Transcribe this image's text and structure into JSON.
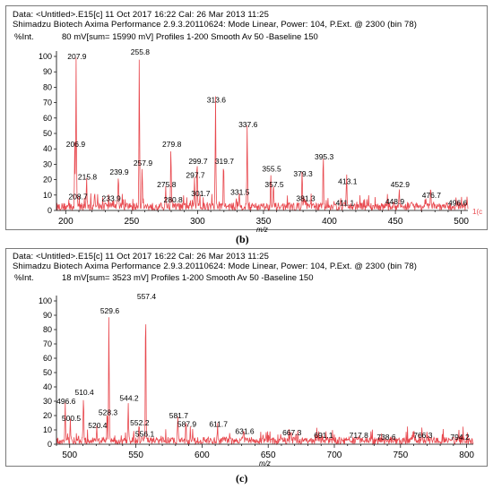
{
  "chart_data": [
    {
      "type": "line",
      "caption": "(b)",
      "header_line1": "Data: <Untitled>.E15[c] 11 Oct 2017 16:22 Cal: 26 Mar 2013 11:25",
      "header_line2": "Shimadzu Biotech Axima Performance 2.9.3.20110624: Mode Linear, Power: 104, P.Ext. @ 2300 (bin 78)",
      "ylabel": "%Int.",
      "acq_info": "80 mV[sum= 15990 mV] Profiles 1-200 Smooth Av 50 -Baseline 150",
      "xlabel": "m/z",
      "xlim": [
        193,
        505
      ],
      "ylim": [
        0,
        100
      ],
      "xticks": [
        200,
        250,
        300,
        350,
        400,
        450,
        500
      ],
      "yticks": [
        0,
        10,
        20,
        30,
        40,
        50,
        60,
        70,
        80,
        90,
        100
      ],
      "peaks": [
        {
          "mz": 206.9,
          "intensity": 40,
          "label": "206.9"
        },
        {
          "mz": 207.9,
          "intensity": 97,
          "label": "207.9"
        },
        {
          "mz": 208.7,
          "intensity": 6,
          "label": "208.7"
        },
        {
          "mz": 215.8,
          "intensity": 19,
          "label": "215.8"
        },
        {
          "mz": 233.9,
          "intensity": 5,
          "label": "233.9"
        },
        {
          "mz": 239.9,
          "intensity": 22,
          "label": "239.9"
        },
        {
          "mz": 255.8,
          "intensity": 100,
          "label": "255.8"
        },
        {
          "mz": 257.9,
          "intensity": 28,
          "label": "257.9"
        },
        {
          "mz": 275.8,
          "intensity": 14,
          "label": "275.8"
        },
        {
          "mz": 279.8,
          "intensity": 40,
          "label": "279.8"
        },
        {
          "mz": 280.8,
          "intensity": 4,
          "label": "280.8"
        },
        {
          "mz": 297.7,
          "intensity": 20,
          "label": "297.7"
        },
        {
          "mz": 299.7,
          "intensity": 29,
          "label": "299.7"
        },
        {
          "mz": 301.7,
          "intensity": 8,
          "label": "301.7"
        },
        {
          "mz": 313.6,
          "intensity": 69,
          "label": "313.6"
        },
        {
          "mz": 319.7,
          "intensity": 29,
          "label": "319.7"
        },
        {
          "mz": 331.5,
          "intensity": 9,
          "label": "331.5"
        },
        {
          "mz": 337.6,
          "intensity": 53,
          "label": "337.6"
        },
        {
          "mz": 355.5,
          "intensity": 24,
          "label": "355.5"
        },
        {
          "mz": 357.5,
          "intensity": 14,
          "label": "357.5"
        },
        {
          "mz": 379.3,
          "intensity": 21,
          "label": "379.3"
        },
        {
          "mz": 381.3,
          "intensity": 5,
          "label": "381.3"
        },
        {
          "mz": 395.3,
          "intensity": 32,
          "label": "395.3"
        },
        {
          "mz": 411.1,
          "intensity": 2,
          "label": "411.1"
        },
        {
          "mz": 413.1,
          "intensity": 16,
          "label": "413.1"
        },
        {
          "mz": 448.9,
          "intensity": 3,
          "label": "448.9"
        },
        {
          "mz": 452.9,
          "intensity": 14,
          "label": "452.9"
        },
        {
          "mz": 476.7,
          "intensity": 7,
          "label": "476.7"
        },
        {
          "mz": 496.6,
          "intensity": 2,
          "label": "496.6"
        }
      ],
      "overflow_label": "1(c"
    },
    {
      "type": "line",
      "caption": "(c)",
      "header_line1": "Data: <Untitled>.E15[c] 11 Oct 2017 16:22 Cal: 26 Mar 2013 11:25",
      "header_line2": "Shimadzu Biotech Axima Performance 2.9.3.20110624: Mode Linear, Power: 104, P.Ext. @ 2300 (bin 78)",
      "ylabel": "%Int.",
      "acq_info": "18 mV[sum= 3523 mV] Profiles 1-200 Smooth Av 50 -Baseline 150",
      "xlabel": "m/z",
      "xlim": [
        490,
        805
      ],
      "ylim": [
        0,
        100
      ],
      "xticks": [
        500,
        550,
        600,
        650,
        700,
        750,
        800
      ],
      "yticks": [
        0,
        10,
        20,
        30,
        40,
        50,
        60,
        70,
        80,
        90,
        100
      ],
      "peaks": [
        {
          "mz": 496.6,
          "intensity": 27,
          "label": "496.6"
        },
        {
          "mz": 500.5,
          "intensity": 15,
          "label": "500.5"
        },
        {
          "mz": 510.4,
          "intensity": 33,
          "label": "510.4"
        },
        {
          "mz": 520.4,
          "intensity": 10,
          "label": "520.4"
        },
        {
          "mz": 528.3,
          "intensity": 19,
          "label": "528.3"
        },
        {
          "mz": 529.6,
          "intensity": 90,
          "label": "529.6"
        },
        {
          "mz": 544.2,
          "intensity": 29,
          "label": "544.2"
        },
        {
          "mz": 552.2,
          "intensity": 12,
          "label": "552.2"
        },
        {
          "mz": 556.1,
          "intensity": 4,
          "label": "556.1"
        },
        {
          "mz": 557.4,
          "intensity": 100,
          "label": "557.4"
        },
        {
          "mz": 581.7,
          "intensity": 17,
          "label": "581.7"
        },
        {
          "mz": 587.9,
          "intensity": 11,
          "label": "587.9"
        },
        {
          "mz": 611.7,
          "intensity": 11,
          "label": "611.7"
        },
        {
          "mz": 631.6,
          "intensity": 6,
          "label": "631.6"
        },
        {
          "mz": 667.3,
          "intensity": 5,
          "label": "667.3"
        },
        {
          "mz": 691.1,
          "intensity": 3,
          "label": "691.1"
        },
        {
          "mz": 717.8,
          "intensity": 3,
          "label": "717.8"
        },
        {
          "mz": 738.6,
          "intensity": 2,
          "label": "738.6"
        },
        {
          "mz": 766.3,
          "intensity": 3,
          "label": "766.3"
        },
        {
          "mz": 794.2,
          "intensity": 2,
          "label": "794.2"
        }
      ]
    }
  ],
  "colors": {
    "trace": "#e8494f",
    "axis": "#000000",
    "frame": "#7a7a7a"
  }
}
